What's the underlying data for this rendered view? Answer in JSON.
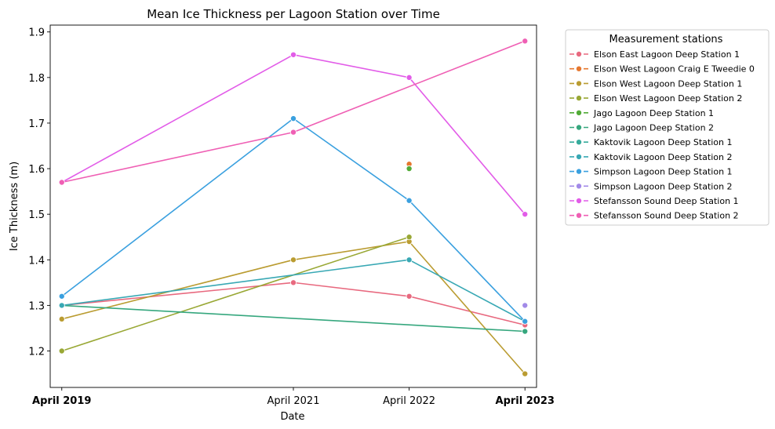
{
  "chart_data": {
    "type": "line",
    "title": "Mean Ice Thickness per Lagoon Station over Time",
    "xlabel": "Date",
    "ylabel": "Ice Thickness (m)",
    "x_ticks": [
      "April 2019",
      "April 2021",
      "April 2022",
      "April 2023"
    ],
    "x_tick_bold": [
      true,
      false,
      false,
      true
    ],
    "x_months": [
      0,
      24,
      36,
      48
    ],
    "xlim": [
      -1.2,
      49.2
    ],
    "ylim": [
      1.12,
      1.915
    ],
    "y_ticks": [
      1.2,
      1.3,
      1.4,
      1.5,
      1.6,
      1.7,
      1.8,
      1.9
    ],
    "y_tick_labels": [
      "1.2",
      "1.3",
      "1.4",
      "1.5",
      "1.6",
      "1.7",
      "1.8",
      "1.9"
    ],
    "grid": false,
    "legend": {
      "title": "Measurement stations",
      "placement": "outside-right"
    },
    "series": [
      {
        "name": "Elson East Lagoon Deep Station 1",
        "color": "#e8697f",
        "x": [
          0,
          24,
          36,
          48
        ],
        "y": [
          1.3,
          1.35,
          1.32,
          1.257
        ]
      },
      {
        "name": "Elson West Lagoon Craig E Tweedie 0",
        "color": "#e6772f",
        "x": [
          36
        ],
        "y": [
          1.61
        ]
      },
      {
        "name": "Elson West Lagoon Deep Station 1",
        "color": "#ba9c31",
        "x": [
          0,
          24,
          36,
          48
        ],
        "y": [
          1.27,
          1.4,
          1.44,
          1.15
        ]
      },
      {
        "name": "Elson West Lagoon Deep Station 2",
        "color": "#99a835",
        "x": [
          0,
          36
        ],
        "y": [
          1.2,
          1.45
        ]
      },
      {
        "name": "Jago Lagoon Deep Station 1",
        "color": "#52ab37",
        "x": [
          36
        ],
        "y": [
          1.6
        ]
      },
      {
        "name": "Jago Lagoon Deep Station 2",
        "color": "#36a77e",
        "x": [
          0,
          48
        ],
        "y": [
          1.3,
          1.243
        ]
      },
      {
        "name": "Kaktovik Lagoon Deep Station 1",
        "color": "#37ab9c",
        "x": [],
        "y": []
      },
      {
        "name": "Kaktovik Lagoon Deep Station 2",
        "color": "#38a8b4",
        "x": [
          0,
          36,
          48
        ],
        "y": [
          1.3,
          1.4,
          1.265
        ]
      },
      {
        "name": "Simpson Lagoon Deep Station 1",
        "color": "#3aa0df",
        "x": [
          0,
          24,
          36,
          48
        ],
        "y": [
          1.32,
          1.71,
          1.53,
          1.265
        ]
      },
      {
        "name": "Simpson Lagoon Deep Station 2",
        "color": "#a28ae8",
        "x": [
          48
        ],
        "y": [
          1.3
        ]
      },
      {
        "name": "Stefansson Sound Deep Station 1",
        "color": "#e25ce8",
        "x": [
          0,
          24,
          36,
          48
        ],
        "y": [
          1.57,
          1.85,
          1.8,
          1.5
        ]
      },
      {
        "name": "Stefansson Sound Deep Station 2",
        "color": "#ef5fb4",
        "x": [
          0,
          24,
          48
        ],
        "y": [
          1.57,
          1.68,
          1.88
        ]
      }
    ]
  }
}
